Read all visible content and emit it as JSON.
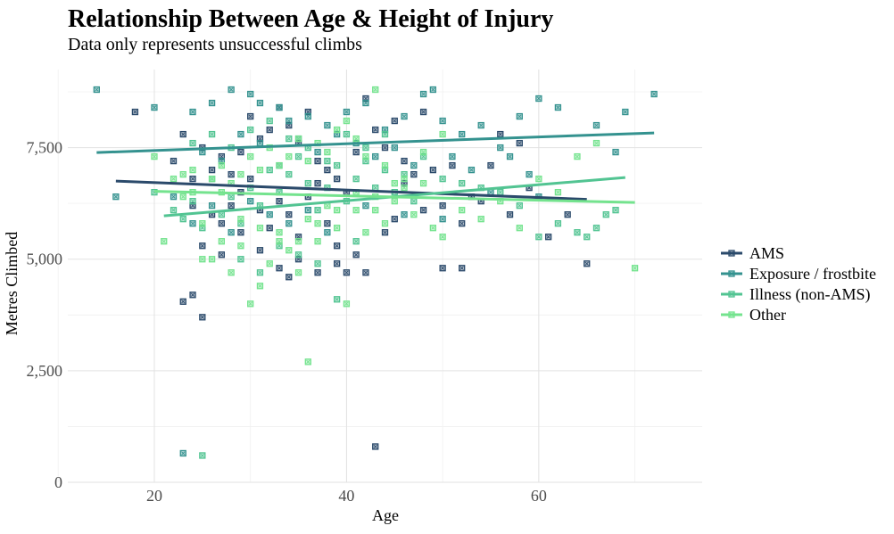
{
  "chart_data": {
    "type": "scatter",
    "title": "Relationship Between Age & Height of Injury",
    "subtitle": "Data only represents unsuccessful climbs",
    "xlabel": "Age",
    "ylabel": "Metres Climbed",
    "xlim": [
      11,
      77
    ],
    "ylim": [
      0,
      9250
    ],
    "x_ticks": [
      20,
      40,
      60
    ],
    "y_ticks": [
      0,
      2500,
      5000,
      7500
    ],
    "x_tick_labels": [
      "20",
      "40",
      "60"
    ],
    "y_tick_labels": [
      "0",
      "2,500",
      "5,000",
      "7,500"
    ],
    "grid": true,
    "legend_position": "right",
    "series": [
      {
        "name": "AMS",
        "color": "#2b4a6b",
        "trend": [
          [
            16,
            6750
          ],
          [
            65,
            6340
          ]
        ],
        "points": [
          [
            18,
            8300
          ],
          [
            22,
            7200
          ],
          [
            23,
            4050
          ],
          [
            24,
            4200
          ],
          [
            25,
            3700
          ],
          [
            23,
            7800
          ],
          [
            24,
            6800
          ],
          [
            25,
            7500
          ],
          [
            26,
            7000
          ],
          [
            27,
            7300
          ],
          [
            28,
            6900
          ],
          [
            29,
            7400
          ],
          [
            30,
            8200
          ],
          [
            31,
            7700
          ],
          [
            32,
            7900
          ],
          [
            33,
            8400
          ],
          [
            34,
            8000
          ],
          [
            35,
            7600
          ],
          [
            36,
            8300
          ],
          [
            37,
            7200
          ],
          [
            38,
            7000
          ],
          [
            39,
            6800
          ],
          [
            40,
            6500
          ],
          [
            41,
            7400
          ],
          [
            42,
            8600
          ],
          [
            43,
            7900
          ],
          [
            44,
            7500
          ],
          [
            45,
            8100
          ],
          [
            46,
            7200
          ],
          [
            47,
            6900
          ],
          [
            48,
            8300
          ],
          [
            49,
            7000
          ],
          [
            50,
            6200
          ],
          [
            51,
            7100
          ],
          [
            52,
            5800
          ],
          [
            53,
            6400
          ],
          [
            54,
            6300
          ],
          [
            55,
            7100
          ],
          [
            56,
            7800
          ],
          [
            57,
            6000
          ],
          [
            58,
            7600
          ],
          [
            59,
            6600
          ],
          [
            61,
            5500
          ],
          [
            63,
            6000
          ],
          [
            65,
            4900
          ],
          [
            24,
            6200
          ],
          [
            26,
            6000
          ],
          [
            27,
            5800
          ],
          [
            28,
            6200
          ],
          [
            29,
            6500
          ],
          [
            30,
            6800
          ],
          [
            31,
            6100
          ],
          [
            32,
            5700
          ],
          [
            33,
            6300
          ],
          [
            34,
            6000
          ],
          [
            35,
            5500
          ],
          [
            36,
            6400
          ],
          [
            37,
            6700
          ],
          [
            38,
            5800
          ],
          [
            39,
            5300
          ],
          [
            40,
            4700
          ],
          [
            41,
            5100
          ],
          [
            42,
            4700
          ],
          [
            43,
            800
          ],
          [
            44,
            5600
          ],
          [
            45,
            5900
          ],
          [
            46,
            6700
          ],
          [
            48,
            6100
          ],
          [
            50,
            4800
          ],
          [
            52,
            4800
          ],
          [
            25,
            5300
          ],
          [
            27,
            5100
          ],
          [
            29,
            5600
          ],
          [
            31,
            5200
          ],
          [
            33,
            4800
          ],
          [
            34,
            4600
          ],
          [
            35,
            5000
          ],
          [
            37,
            4700
          ],
          [
            39,
            4900
          ]
        ]
      },
      {
        "name": "Exposure / frostbite",
        "color": "#34928f",
        "trend": [
          [
            14,
            7390
          ],
          [
            72,
            7830
          ]
        ],
        "points": [
          [
            14,
            8800
          ],
          [
            16,
            6400
          ],
          [
            20,
            8400
          ],
          [
            23,
            650
          ],
          [
            24,
            8300
          ],
          [
            26,
            8500
          ],
          [
            28,
            8800
          ],
          [
            30,
            8700
          ],
          [
            31,
            8500
          ],
          [
            33,
            8400
          ],
          [
            34,
            8100
          ],
          [
            36,
            8200
          ],
          [
            38,
            8000
          ],
          [
            40,
            8300
          ],
          [
            42,
            8500
          ],
          [
            44,
            7900
          ],
          [
            46,
            8200
          ],
          [
            48,
            8700
          ],
          [
            49,
            8800
          ],
          [
            50,
            8100
          ],
          [
            52,
            7800
          ],
          [
            54,
            8000
          ],
          [
            56,
            7500
          ],
          [
            58,
            8200
          ],
          [
            60,
            8600
          ],
          [
            62,
            8400
          ],
          [
            66,
            8000
          ],
          [
            68,
            7400
          ],
          [
            69,
            8300
          ],
          [
            72,
            8700
          ],
          [
            25,
            7400
          ],
          [
            27,
            7200
          ],
          [
            29,
            7800
          ],
          [
            31,
            7600
          ],
          [
            33,
            7100
          ],
          [
            35,
            7700
          ],
          [
            37,
            7400
          ],
          [
            39,
            7800
          ],
          [
            41,
            7600
          ],
          [
            43,
            7300
          ],
          [
            45,
            7500
          ],
          [
            47,
            7100
          ],
          [
            51,
            7300
          ],
          [
            53,
            7000
          ],
          [
            57,
            7300
          ],
          [
            59,
            6900
          ],
          [
            60,
            6400
          ],
          [
            22,
            6400
          ],
          [
            24,
            5800
          ],
          [
            26,
            6200
          ],
          [
            28,
            5600
          ],
          [
            30,
            6300
          ],
          [
            32,
            6000
          ],
          [
            34,
            5800
          ],
          [
            36,
            6100
          ],
          [
            38,
            5600
          ],
          [
            42,
            6200
          ],
          [
            46,
            6000
          ],
          [
            50,
            5900
          ],
          [
            55,
            6500
          ]
        ]
      },
      {
        "name": "Illness (non-AMS)",
        "color": "#52c492",
        "trend": [
          [
            21,
            5970
          ],
          [
            69,
            6830
          ]
        ],
        "points": [
          [
            20,
            6500
          ],
          [
            22,
            6100
          ],
          [
            23,
            5900
          ],
          [
            24,
            6300
          ],
          [
            25,
            5700
          ],
          [
            26,
            6800
          ],
          [
            27,
            6000
          ],
          [
            28,
            6400
          ],
          [
            29,
            5800
          ],
          [
            30,
            6600
          ],
          [
            31,
            6200
          ],
          [
            32,
            7000
          ],
          [
            33,
            6500
          ],
          [
            34,
            6900
          ],
          [
            35,
            7300
          ],
          [
            36,
            6700
          ],
          [
            37,
            6100
          ],
          [
            38,
            6600
          ],
          [
            39,
            7100
          ],
          [
            40,
            6300
          ],
          [
            41,
            6800
          ],
          [
            42,
            7200
          ],
          [
            43,
            6600
          ],
          [
            44,
            7000
          ],
          [
            45,
            6500
          ],
          [
            46,
            6900
          ],
          [
            47,
            6300
          ],
          [
            48,
            7300
          ],
          [
            50,
            6800
          ],
          [
            52,
            6700
          ],
          [
            54,
            6600
          ],
          [
            56,
            6500
          ],
          [
            58,
            6200
          ],
          [
            60,
            5500
          ],
          [
            62,
            5800
          ],
          [
            64,
            5600
          ],
          [
            65,
            5500
          ],
          [
            66,
            5700
          ],
          [
            67,
            6000
          ],
          [
            68,
            6100
          ],
          [
            24,
            7600
          ],
          [
            26,
            7800
          ],
          [
            28,
            7500
          ],
          [
            30,
            7900
          ],
          [
            32,
            8100
          ],
          [
            34,
            7700
          ],
          [
            36,
            7500
          ],
          [
            38,
            7200
          ],
          [
            40,
            7800
          ],
          [
            42,
            7500
          ],
          [
            44,
            7800
          ],
          [
            29,
            5000
          ],
          [
            31,
            4700
          ],
          [
            33,
            5300
          ],
          [
            35,
            5100
          ],
          [
            37,
            4900
          ],
          [
            39,
            4100
          ],
          [
            41,
            5400
          ],
          [
            25,
            600
          ]
        ]
      },
      {
        "name": "Other",
        "color": "#74e38e",
        "trend": [
          [
            20,
            6520
          ],
          [
            70,
            6270
          ]
        ],
        "points": [
          [
            20,
            7300
          ],
          [
            21,
            5400
          ],
          [
            22,
            6800
          ],
          [
            23,
            6400
          ],
          [
            24,
            7000
          ],
          [
            25,
            5800
          ],
          [
            26,
            5000
          ],
          [
            27,
            6500
          ],
          [
            28,
            4700
          ],
          [
            29,
            5300
          ],
          [
            30,
            4000
          ],
          [
            31,
            4400
          ],
          [
            32,
            4900
          ],
          [
            33,
            5600
          ],
          [
            34,
            5200
          ],
          [
            35,
            4700
          ],
          [
            36,
            5900
          ],
          [
            37,
            5400
          ],
          [
            38,
            6200
          ],
          [
            39,
            5700
          ],
          [
            40,
            4000
          ],
          [
            41,
            6100
          ],
          [
            42,
            5600
          ],
          [
            43,
            6400
          ],
          [
            44,
            5800
          ],
          [
            45,
            6300
          ],
          [
            46,
            6600
          ],
          [
            47,
            6000
          ],
          [
            48,
            6700
          ],
          [
            49,
            5700
          ],
          [
            50,
            5500
          ],
          [
            52,
            6100
          ],
          [
            54,
            5900
          ],
          [
            56,
            6300
          ],
          [
            58,
            5700
          ],
          [
            60,
            6800
          ],
          [
            62,
            6500
          ],
          [
            64,
            7300
          ],
          [
            66,
            7600
          ],
          [
            70,
            4800
          ],
          [
            23,
            6900
          ],
          [
            24,
            6500
          ],
          [
            26,
            6800
          ],
          [
            27,
            7100
          ],
          [
            28,
            6700
          ],
          [
            29,
            6900
          ],
          [
            30,
            7300
          ],
          [
            31,
            7000
          ],
          [
            32,
            7500
          ],
          [
            33,
            7100
          ],
          [
            34,
            7300
          ],
          [
            35,
            7700
          ],
          [
            36,
            7200
          ],
          [
            37,
            7600
          ],
          [
            38,
            7400
          ],
          [
            39,
            7900
          ],
          [
            40,
            8100
          ],
          [
            41,
            7700
          ],
          [
            42,
            7300
          ],
          [
            43,
            8800
          ],
          [
            44,
            7100
          ],
          [
            46,
            6800
          ],
          [
            48,
            7400
          ],
          [
            50,
            7800
          ],
          [
            36,
            2700
          ],
          [
            25,
            5000
          ],
          [
            27,
            5400
          ],
          [
            29,
            5900
          ],
          [
            31,
            5700
          ],
          [
            33,
            5400
          ],
          [
            35,
            5400
          ],
          [
            37,
            5800
          ],
          [
            39,
            6100
          ],
          [
            41,
            6500
          ],
          [
            43,
            6100
          ],
          [
            45,
            6700
          ]
        ]
      }
    ]
  }
}
